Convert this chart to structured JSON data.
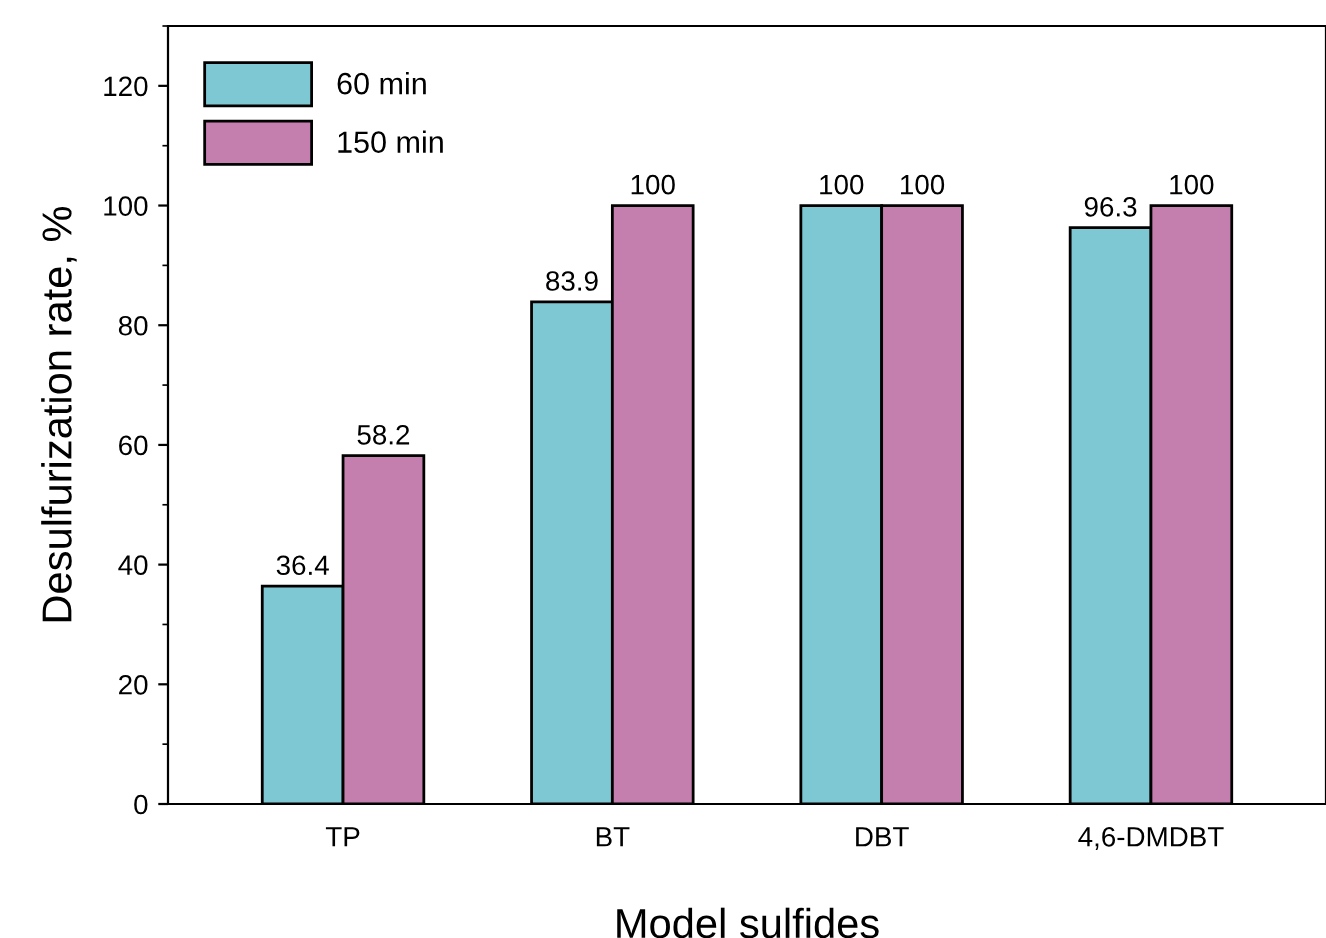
{
  "chart_data": {
    "type": "bar",
    "xlabel": "Model sulfides",
    "ylabel": "Desulfurization rate, %",
    "categories": [
      "TP",
      "BT",
      "DBT",
      "4,6-DMDBT"
    ],
    "series": [
      {
        "name": "60 min",
        "color": "#7ec8d3",
        "values": [
          36.4,
          83.9,
          100,
          96.3
        ]
      },
      {
        "name": "150 min",
        "color": "#c47fae",
        "values": [
          58.2,
          100,
          100,
          100
        ]
      }
    ],
    "ylim": [
      0,
      130
    ],
    "yticks": [
      0,
      20,
      40,
      60,
      80,
      100,
      120
    ],
    "data_labels": true,
    "legend": "top left",
    "grid": false
  }
}
